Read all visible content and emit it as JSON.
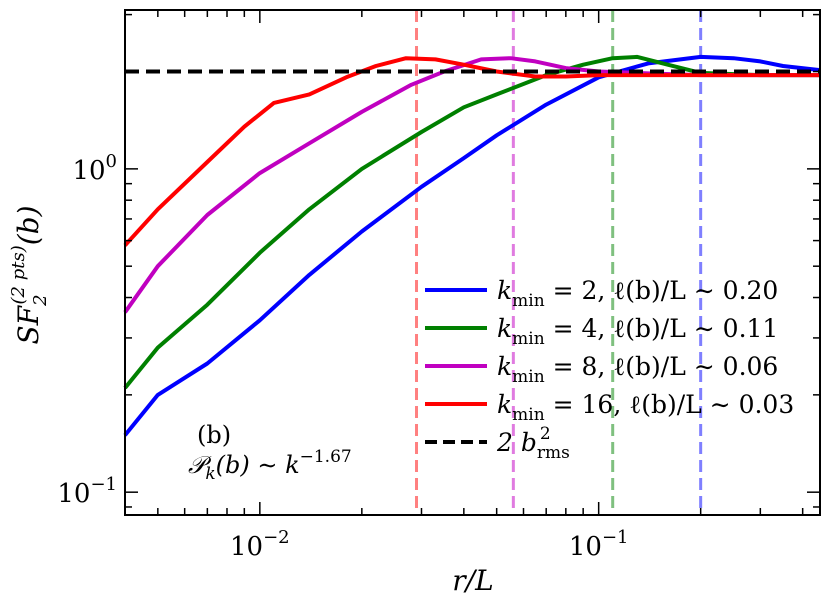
{
  "chart_data": {
    "type": "line",
    "xscale": "log",
    "yscale": "log",
    "xlim": [
      0.004,
      0.45
    ],
    "ylim": [
      0.085,
      3.1
    ],
    "x_tick_labels": [
      {
        "value": 0.01,
        "mantissa": "10",
        "exponent": "−2"
      },
      {
        "value": 0.1,
        "mantissa": "10",
        "exponent": "−1"
      }
    ],
    "y_tick_labels": [
      {
        "value": 1.0,
        "mantissa": "10",
        "exponent": "0"
      },
      {
        "value": 0.1,
        "mantissa": "10",
        "exponent": "−1"
      }
    ],
    "xlabel": {
      "main": "r/L"
    },
    "ylabel": {
      "main": "SF",
      "sub": "2",
      "sup": "(2 pts)",
      "arg": "(b)"
    },
    "annotations": {
      "panel": "(b)",
      "spectrum_main": "𝒫",
      "spectrum_sub": "k",
      "spectrum_rest": "(b) ∼ k",
      "spectrum_exp": "−1.67"
    },
    "reference_line": {
      "y": 2.0,
      "color": "#000000",
      "style": "dashed"
    },
    "vertical_lines": [
      {
        "x": 0.029,
        "color": "#ff8080"
      },
      {
        "x": 0.056,
        "color": "#e07be0"
      },
      {
        "x": 0.11,
        "color": "#7fc07f"
      },
      {
        "x": 0.2,
        "color": "#7f7fff"
      }
    ],
    "series": [
      {
        "color": "#0000ff",
        "x": [
          0.004,
          0.005,
          0.007,
          0.01,
          0.014,
          0.02,
          0.03,
          0.04,
          0.05,
          0.07,
          0.1,
          0.14,
          0.2,
          0.25,
          0.3,
          0.35,
          0.45
        ],
        "y": [
          0.15,
          0.2,
          0.25,
          0.34,
          0.47,
          0.64,
          0.88,
          1.08,
          1.27,
          1.58,
          1.92,
          2.12,
          2.22,
          2.2,
          2.15,
          2.08,
          2.02
        ]
      },
      {
        "color": "#008000",
        "x": [
          0.004,
          0.005,
          0.007,
          0.01,
          0.014,
          0.02,
          0.03,
          0.04,
          0.05,
          0.07,
          0.09,
          0.11,
          0.13,
          0.16,
          0.2,
          0.3,
          0.45
        ],
        "y": [
          0.21,
          0.28,
          0.38,
          0.55,
          0.75,
          1.0,
          1.3,
          1.55,
          1.7,
          1.95,
          2.1,
          2.2,
          2.22,
          2.1,
          1.98,
          1.95,
          1.95
        ]
      },
      {
        "color": "#c000c0",
        "x": [
          0.004,
          0.005,
          0.007,
          0.01,
          0.014,
          0.02,
          0.028,
          0.035,
          0.045,
          0.055,
          0.065,
          0.08,
          0.1,
          0.15,
          0.2,
          0.3,
          0.45
        ],
        "y": [
          0.36,
          0.5,
          0.72,
          0.97,
          1.2,
          1.5,
          1.82,
          2.0,
          2.18,
          2.2,
          2.15,
          2.05,
          2.0,
          1.97,
          1.95,
          1.95,
          1.95
        ]
      },
      {
        "color": "#ff0000",
        "x": [
          0.004,
          0.005,
          0.007,
          0.009,
          0.011,
          0.014,
          0.018,
          0.022,
          0.027,
          0.033,
          0.04,
          0.05,
          0.065,
          0.08,
          0.1,
          0.15,
          0.2,
          0.3,
          0.45
        ],
        "y": [
          0.58,
          0.75,
          1.05,
          1.35,
          1.6,
          1.7,
          1.92,
          2.08,
          2.2,
          2.18,
          2.1,
          2.0,
          1.93,
          1.93,
          1.95,
          1.95,
          1.95,
          1.95,
          1.95
        ]
      }
    ],
    "legend": {
      "placement": "lower right",
      "entries": [
        {
          "color": "#0000ff",
          "style": "solid",
          "k": "k",
          "k_sub": "min",
          "text": " = 2, ℓ(b)/L ∼ 0.20"
        },
        {
          "color": "#008000",
          "style": "solid",
          "k": "k",
          "k_sub": "min",
          "text": " = 4, ℓ(b)/L ∼ 0.11"
        },
        {
          "color": "#c000c0",
          "style": "solid",
          "k": "k",
          "k_sub": "min",
          "text": " = 8, ℓ(b)/L ∼ 0.06"
        },
        {
          "color": "#ff0000",
          "style": "solid",
          "k": "k",
          "k_sub": "min",
          "text": " = 16, ℓ(b)/L ∼ 0.03"
        },
        {
          "color": "#000000",
          "style": "dashed",
          "k": "2 b",
          "k_sub": "rms",
          "k_sup": "2",
          "text": ""
        }
      ]
    }
  }
}
